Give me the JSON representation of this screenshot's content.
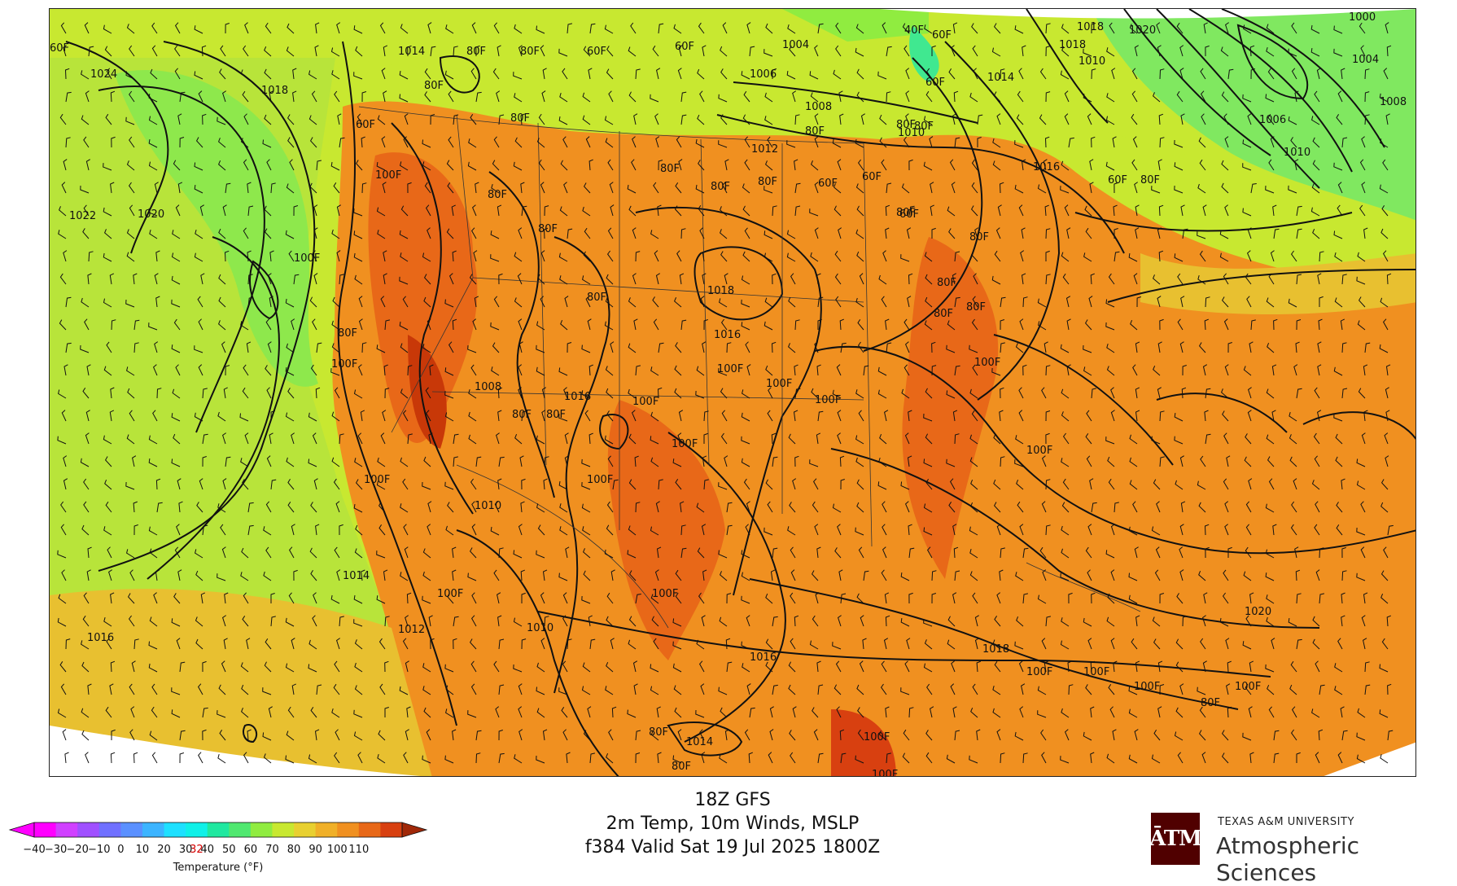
{
  "title": {
    "line1": "18Z GFS",
    "line2": "2m Temp, 10m Winds, MSLP",
    "line3": "f384 Valid Sat 19 Jul 2025 1800Z"
  },
  "colorbar": {
    "label": "Temperature (°F)",
    "ticks": [
      "−40",
      "−30",
      "−20",
      "−10",
      "0",
      "10",
      "20",
      "30",
      "32",
      "40",
      "50",
      "60",
      "70",
      "80",
      "90",
      "100",
      "110"
    ],
    "highlight_tick": "32",
    "highlight_color": "#d40000",
    "colors": [
      "#ff00ff",
      "#d040ff",
      "#a050ff",
      "#7070ff",
      "#5a90ff",
      "#3cb4ff",
      "#1ee0ff",
      "#10f0e8",
      "#20e8a0",
      "#50e870",
      "#90ec40",
      "#c8e830",
      "#e8d030",
      "#f0b028",
      "#f09020",
      "#e86818",
      "#d84010"
    ]
  },
  "map": {
    "isobar_labels": [
      "1024",
      "1018",
      "1022",
      "1020",
      "1014",
      "1016",
      "1014",
      "1012",
      "1010",
      "1008",
      "1016",
      "1010",
      "1018",
      "1016",
      "1006",
      "1004",
      "1008",
      "1010",
      "1012",
      "1018",
      "1014",
      "1016",
      "1018",
      "1020",
      "1000",
      "1004",
      "1008",
      "1006",
      "1010",
      "1020",
      "1018",
      "1014",
      "1016",
      "1010"
    ],
    "temp_labels": [
      "100F",
      "80F",
      "60F",
      "40F"
    ]
  },
  "logo": {
    "mark": "ĀTM",
    "university": "TEXAS A&M UNIVERSITY",
    "department": "Atmospheric Sciences"
  },
  "legend_colors": {
    "ocean_green": "#a8e040",
    "land_orange": "#f09020",
    "hot_red": "#e86818",
    "cool_green": "#6ee860",
    "frame": "#222222"
  }
}
